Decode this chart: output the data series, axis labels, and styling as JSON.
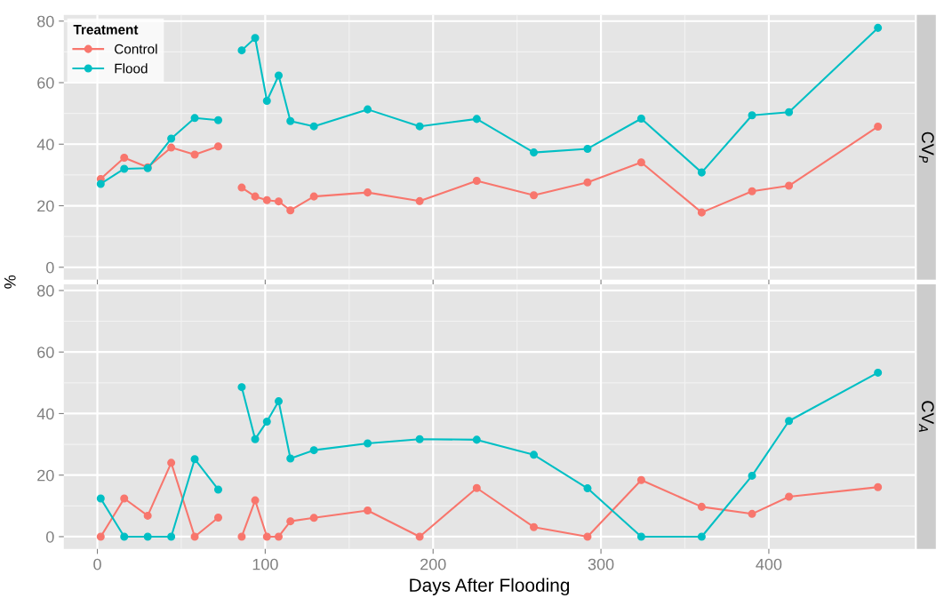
{
  "chart_data": [
    {
      "type": "line",
      "y2label": "CV$_{P}$",
      "ylabel": "%",
      "legend_title": "Treatment",
      "legend": "top left",
      "grid": true,
      "marker": "circle",
      "line_style": "solid",
      "tick_labels": "y",
      "x": [
        2,
        16,
        30,
        44,
        58,
        72,
        79,
        86,
        94,
        101,
        108,
        115,
        129,
        161,
        192,
        226,
        260,
        292,
        324,
        360,
        390,
        412,
        465
      ],
      "xlim": [
        -20,
        487
      ],
      "xticks": [
        0,
        100,
        200,
        300,
        400
      ],
      "ylim": [
        -4,
        82
      ],
      "yticks": [
        0,
        20,
        40,
        60,
        80
      ],
      "series": [
        {
          "name": "Control",
          "color": "#f8766d",
          "values": [
            28.7,
            35.6,
            32.5,
            38.9,
            36.6,
            39.3,
            null,
            25.9,
            23.0,
            21.8,
            21.4,
            18.5,
            23.0,
            24.3,
            21.5,
            28.1,
            23.4,
            27.6,
            34.1,
            17.8,
            24.7,
            26.5,
            45.7
          ]
        },
        {
          "name": "Flood",
          "color": "#00bfc4",
          "values": [
            27.1,
            32.0,
            32.2,
            41.8,
            48.5,
            47.8,
            null,
            70.5,
            74.5,
            54.1,
            62.3,
            47.5,
            45.8,
            51.3,
            45.8,
            48.2,
            37.3,
            38.5,
            48.3,
            30.8,
            49.4,
            50.4,
            77.8
          ]
        }
      ]
    },
    {
      "type": "line",
      "y2label": "CV$_{A}$",
      "xlabel": "Days After Flooding",
      "grid": true,
      "marker": "circle",
      "line_style": "solid",
      "x": [
        2,
        16,
        30,
        44,
        58,
        72,
        79,
        86,
        94,
        101,
        108,
        115,
        129,
        161,
        192,
        226,
        260,
        292,
        324,
        360,
        390,
        412,
        465
      ],
      "xlim": [
        -20,
        487
      ],
      "xticks": [
        0,
        100,
        200,
        300,
        400
      ],
      "ylim": [
        -4,
        82
      ],
      "yticks": [
        0,
        20,
        40,
        60,
        80
      ],
      "series": [
        {
          "color": "#f8766d",
          "values": [
            0,
            12.4,
            6.8,
            24.0,
            0,
            6.2,
            null,
            0,
            11.8,
            0,
            0,
            5.0,
            6.1,
            8.5,
            0,
            15.8,
            3.1,
            0,
            18.4,
            9.7,
            7.4,
            13.0,
            16.1
          ]
        },
        {
          "color": "#00bfc4",
          "values": [
            12.4,
            0,
            0,
            0,
            25.2,
            15.3,
            null,
            48.6,
            31.7,
            37.4,
            44.0,
            25.4,
            28.1,
            30.3,
            31.7,
            31.5,
            26.6,
            15.7,
            0,
            0,
            19.8,
            37.6,
            53.3
          ]
        }
      ]
    }
  ]
}
